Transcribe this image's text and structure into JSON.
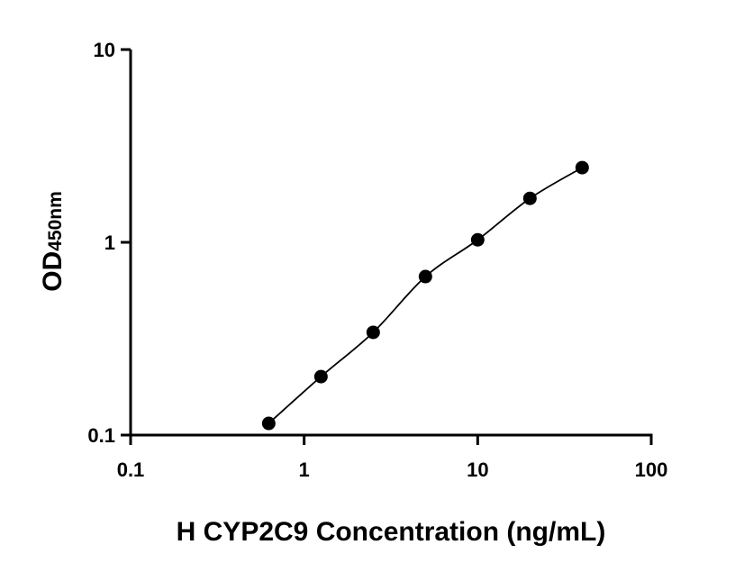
{
  "chart_data": {
    "type": "scatter",
    "title": "",
    "xlabel": "H CYP2C9 Concentration (ng/mL)",
    "ylabel_main": "OD",
    "ylabel_sub": "450nm",
    "x_scale": "log",
    "y_scale": "log",
    "xlim": [
      0.1,
      100
    ],
    "ylim": [
      0.1,
      10
    ],
    "x_ticks": [
      0.1,
      1,
      10,
      100
    ],
    "x_tick_labels": [
      "0.1",
      "1",
      "10",
      "100"
    ],
    "y_ticks": [
      0.1,
      1,
      10
    ],
    "y_tick_labels": [
      "0.1",
      "1",
      "10"
    ],
    "grid": false,
    "fit_curve": true,
    "series": [
      {
        "x": [
          0.625,
          1.25,
          2.5,
          5,
          10,
          20,
          40
        ],
        "y": [
          0.115,
          0.201,
          0.341,
          0.664,
          1.03,
          1.69,
          2.44
        ]
      }
    ],
    "colors": {
      "points": "#000000",
      "line": "#000000"
    }
  }
}
